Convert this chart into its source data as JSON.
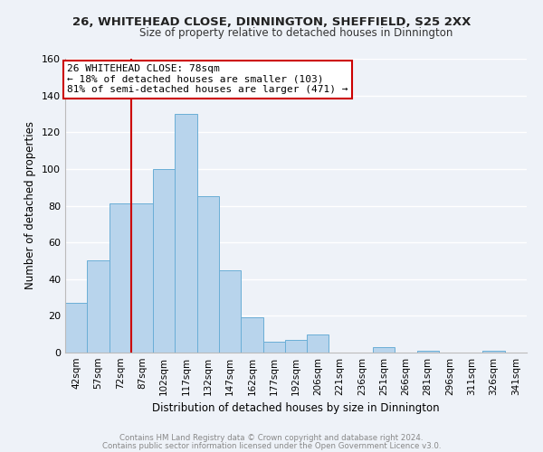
{
  "title_line1": "26, WHITEHEAD CLOSE, DINNINGTON, SHEFFIELD, S25 2XX",
  "title_line2": "Size of property relative to detached houses in Dinnington",
  "xlabel": "Distribution of detached houses by size in Dinnington",
  "ylabel": "Number of detached properties",
  "bar_labels": [
    "42sqm",
    "57sqm",
    "72sqm",
    "87sqm",
    "102sqm",
    "117sqm",
    "132sqm",
    "147sqm",
    "162sqm",
    "177sqm",
    "192sqm",
    "206sqm",
    "221sqm",
    "236sqm",
    "251sqm",
    "266sqm",
    "281sqm",
    "296sqm",
    "311sqm",
    "326sqm",
    "341sqm"
  ],
  "bar_values": [
    27,
    50,
    81,
    81,
    100,
    130,
    85,
    45,
    19,
    6,
    7,
    10,
    0,
    0,
    3,
    0,
    1,
    0,
    0,
    1,
    0
  ],
  "bar_color": "#b8d4ec",
  "bar_edge_color": "#6aaed6",
  "ylim": [
    0,
    160
  ],
  "yticks": [
    0,
    20,
    40,
    60,
    80,
    100,
    120,
    140,
    160
  ],
  "vline_color": "#cc0000",
  "vline_x_index": 2.5,
  "annotation_box_text": "26 WHITEHEAD CLOSE: 78sqm\n← 18% of detached houses are smaller (103)\n81% of semi-detached houses are larger (471) →",
  "box_edge_color": "#cc0000",
  "footer_line1": "Contains HM Land Registry data © Crown copyright and database right 2024.",
  "footer_line2": "Contains public sector information licensed under the Open Government Licence v3.0.",
  "background_color": "#eef2f8",
  "grid_color": "#ffffff"
}
